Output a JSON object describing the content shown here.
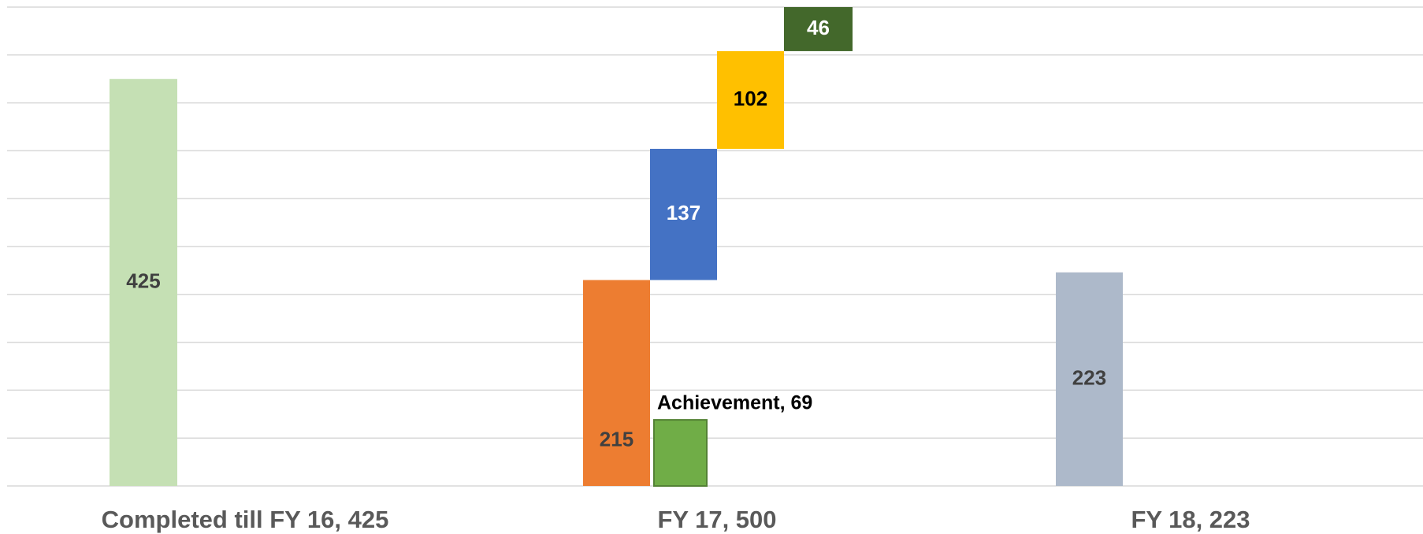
{
  "chart_data": {
    "type": "waterfall",
    "categories": [
      "Completed till FY 16, 425",
      "FY 17, 500",
      "FY 18, 223"
    ],
    "ylim": [
      0,
      500
    ],
    "yticks": [
      0,
      50,
      100,
      150,
      200,
      250,
      300,
      350,
      400,
      450,
      500
    ],
    "grid": true,
    "bars": [
      {
        "value": 425,
        "color": "#c5e0b4"
      },
      {
        "value": 215,
        "color": "#ed7d31"
      },
      {
        "value": 137,
        "color": "#4472c4"
      },
      {
        "value": 102,
        "color": "#ffc000"
      },
      {
        "value": 46,
        "color": "#43682b"
      },
      {
        "value": 69,
        "color": "#70ad47",
        "value_label": "Achievement, 69"
      },
      {
        "value": 223,
        "color": "#adb9ca"
      }
    ]
  }
}
